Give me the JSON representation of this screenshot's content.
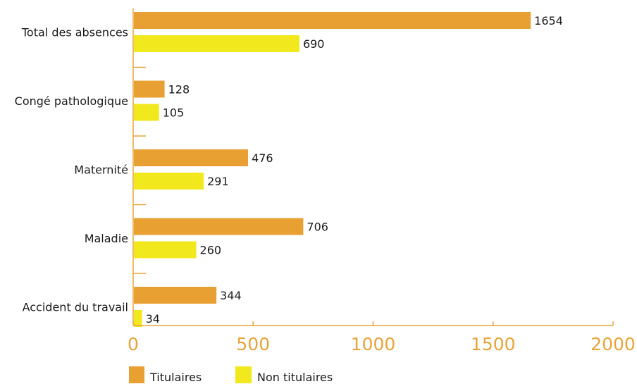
{
  "chart_data": {
    "type": "bar",
    "orientation": "horizontal",
    "categories": [
      "Total des absences",
      "Congé  pathologique",
      "Maternité",
      "Maladie",
      "Accident du travail"
    ],
    "series": [
      {
        "name": "Titulaires",
        "color": "#E8A033",
        "values": [
          1654,
          128,
          476,
          706,
          344
        ]
      },
      {
        "name": "Non titulaires",
        "color": "#F2E81E",
        "values": [
          690,
          105,
          291,
          260,
          34
        ]
      }
    ],
    "xticks": [
      "0",
      "500",
      "1000",
      "1500",
      "2000"
    ],
    "xlim": [
      0,
      2000
    ],
    "axis_color": "#E8A33A",
    "legend_position": "bottom-left",
    "grid": false
  }
}
